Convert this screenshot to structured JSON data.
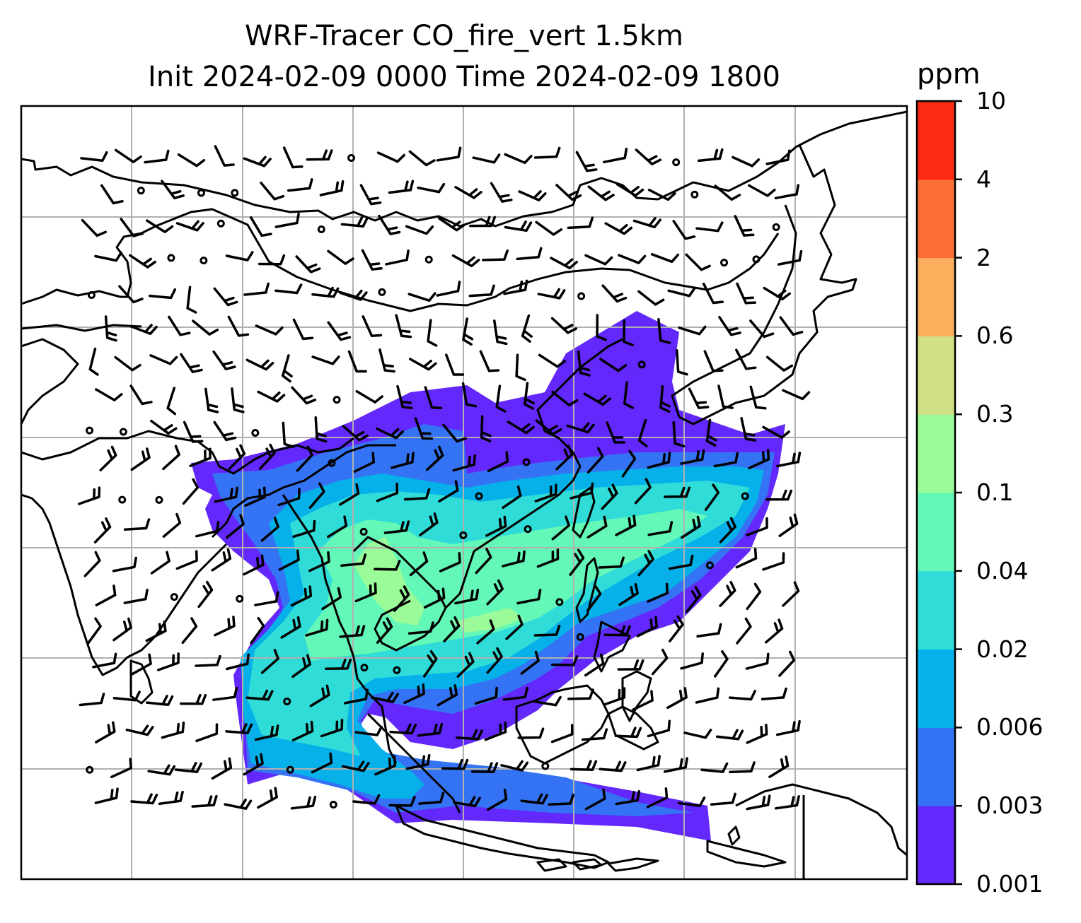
{
  "title_line1": "WRF-Tracer CO_fire_vert 1.5km",
  "title_line2": "Init 2024-02-09 0000 Time 2024-02-09 1800",
  "colorbar": {
    "unit": "ppm",
    "ticks": [
      "0.001",
      "0.003",
      "0.006",
      "0.02",
      "0.04",
      "0.1",
      "0.3",
      "0.6",
      "2",
      "4",
      "10"
    ],
    "colors": [
      "#6328fb",
      "#3474f4",
      "#06b1e9",
      "#2fdcd7",
      "#64f8b8",
      "#9cfb99",
      "#d1e085",
      "#fdae5d",
      "#fd6f39",
      "#fd2a14"
    ]
  },
  "map": {
    "frame_color": "#000000",
    "gridline_color": "#b0b0b0",
    "coastline_color": "#000000",
    "wind_barb_color": "#000000",
    "field_color_scale": "rainbow",
    "region": "Southeast Asia, South China Sea, Maritime Continent"
  }
}
